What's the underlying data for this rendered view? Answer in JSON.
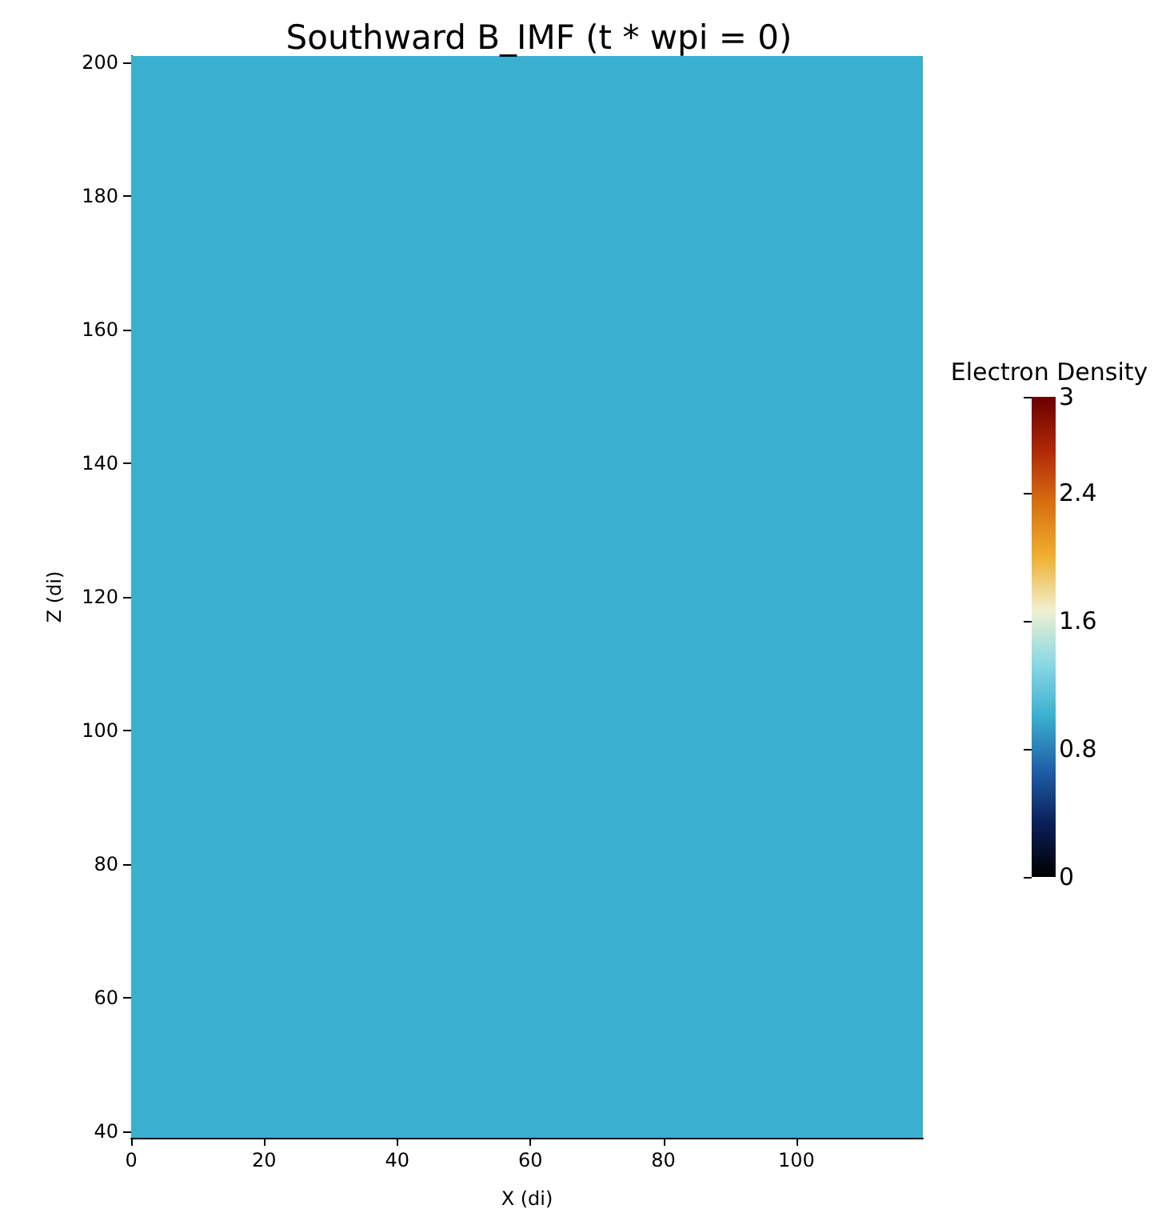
{
  "chart_data": {
    "type": "heatmap",
    "title": "Southward B_IMF (t * wpi = 0)",
    "xlabel": "X (di)",
    "ylabel": "Z (di)",
    "clabel": "Electron Density",
    "cells": [
      [
        1.0
      ]
    ],
    "xlim": [
      0,
      119
    ],
    "ylim": [
      39,
      201
    ],
    "xticks": [
      0,
      20,
      40,
      60,
      80,
      100
    ],
    "yticks": [
      40,
      60,
      80,
      100,
      120,
      140,
      160,
      180,
      200
    ],
    "clim": [
      0,
      3
    ],
    "cticks": [
      0,
      0.8,
      1.6,
      2.4,
      3
    ]
  }
}
